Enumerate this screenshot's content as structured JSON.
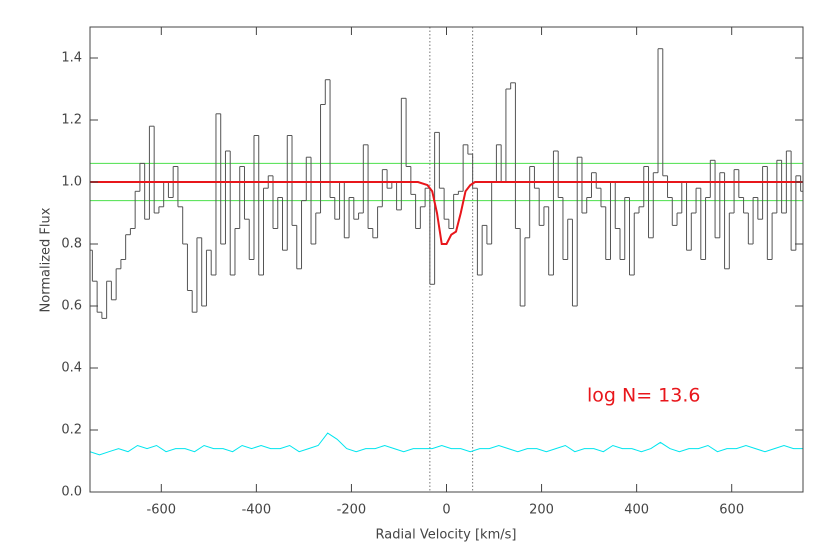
{
  "chart_data": {
    "type": "line",
    "xlabel": "Radial Velocity [km/s]",
    "ylabel": "Normalized Flux",
    "xlim": [
      -750,
      750
    ],
    "ylim": [
      0,
      1.5
    ],
    "xticks": [
      -600,
      -400,
      -200,
      0,
      200,
      400,
      600
    ],
    "yticks": [
      {
        "value": 0,
        "label": "0.0"
      },
      0.2,
      0.4,
      0.6,
      0.8,
      {
        "value": 1,
        "label": "1.0"
      },
      1.2,
      1.4
    ],
    "annotation": {
      "text": "log N= 13.6",
      "color": "#e8161b"
    },
    "hlines": {
      "values": [
        1.06,
        0.94
      ],
      "color": "#4ce04c"
    },
    "vlines": {
      "values": [
        -35,
        55
      ],
      "color": "#777777"
    },
    "series": [
      {
        "style": "step",
        "color": "#555555",
        "x": [
          -750,
          -740,
          -730,
          -720,
          -710,
          -700,
          -690,
          -680,
          -670,
          -660,
          -650,
          -640,
          -630,
          -620,
          -610,
          -600,
          -590,
          -580,
          -570,
          -560,
          -550,
          -540,
          -530,
          -520,
          -510,
          -500,
          -490,
          -480,
          -470,
          -460,
          -450,
          -440,
          -430,
          -420,
          -410,
          -400,
          -390,
          -380,
          -370,
          -360,
          -350,
          -340,
          -330,
          -320,
          -310,
          -300,
          -290,
          -280,
          -270,
          -260,
          -250,
          -240,
          -230,
          -220,
          -210,
          -200,
          -190,
          -180,
          -170,
          -160,
          -150,
          -140,
          -130,
          -120,
          -110,
          -100,
          -90,
          -80,
          -70,
          -60,
          -50,
          -40,
          -30,
          -20,
          -10,
          0,
          10,
          20,
          30,
          40,
          50,
          60,
          70,
          80,
          90,
          100,
          110,
          120,
          130,
          140,
          150,
          160,
          170,
          180,
          190,
          200,
          210,
          220,
          230,
          240,
          250,
          260,
          270,
          280,
          290,
          300,
          310,
          320,
          330,
          340,
          350,
          360,
          370,
          380,
          390,
          400,
          410,
          420,
          430,
          440,
          450,
          460,
          470,
          480,
          490,
          500,
          510,
          520,
          530,
          540,
          550,
          560,
          570,
          580,
          590,
          600,
          610,
          620,
          630,
          640,
          650,
          660,
          670,
          680,
          690,
          700,
          710,
          720,
          730,
          740,
          750
        ],
        "values": [
          0.78,
          0.68,
          0.58,
          0.56,
          0.68,
          0.62,
          0.72,
          0.75,
          0.83,
          0.85,
          0.97,
          1.06,
          0.88,
          1.18,
          0.9,
          0.92,
          1.0,
          0.95,
          1.05,
          0.92,
          0.8,
          0.65,
          0.58,
          0.82,
          0.6,
          0.78,
          0.7,
          1.22,
          0.8,
          1.1,
          0.7,
          0.85,
          1.05,
          0.88,
          0.75,
          1.15,
          0.7,
          0.98,
          1.02,
          0.85,
          0.95,
          0.78,
          1.15,
          0.86,
          0.72,
          0.94,
          1.08,
          0.8,
          0.9,
          1.25,
          1.33,
          0.95,
          0.88,
          1.0,
          0.82,
          0.95,
          0.88,
          0.9,
          1.12,
          0.85,
          0.82,
          0.92,
          1.04,
          0.98,
          1.0,
          0.91,
          1.27,
          1.05,
          0.96,
          0.85,
          0.92,
          0.98,
          0.67,
          1.16,
          0.98,
          0.88,
          0.85,
          0.96,
          0.97,
          1.12,
          1.09,
          0.98,
          0.7,
          0.86,
          0.8,
          1.0,
          1.12,
          1.0,
          1.3,
          1.32,
          0.85,
          0.6,
          0.82,
          1.05,
          0.98,
          0.86,
          0.92,
          0.7,
          1.1,
          0.95,
          0.75,
          0.88,
          0.6,
          1.08,
          0.9,
          0.95,
          1.03,
          0.98,
          0.92,
          0.75,
          1.0,
          0.85,
          0.75,
          0.95,
          0.7,
          0.9,
          0.92,
          1.05,
          0.82,
          1.03,
          1.43,
          1.02,
          0.95,
          0.86,
          0.9,
          1.0,
          0.78,
          0.9,
          0.98,
          0.75,
          0.95,
          1.07,
          0.82,
          1.03,
          0.72,
          0.9,
          1.04,
          0.95,
          0.9,
          0.8,
          0.95,
          0.88,
          1.05,
          0.75,
          0.9,
          1.07,
          0.9,
          1.1,
          0.78,
          1.02,
          0.97
        ]
      },
      {
        "style": "line",
        "color": "#00e5ee",
        "x": [
          -750,
          -730,
          -710,
          -690,
          -670,
          -650,
          -630,
          -610,
          -590,
          -570,
          -550,
          -530,
          -510,
          -490,
          -470,
          -450,
          -430,
          -410,
          -390,
          -370,
          -350,
          -330,
          -310,
          -290,
          -270,
          -250,
          -230,
          -210,
          -190,
          -170,
          -150,
          -130,
          -110,
          -90,
          -70,
          -50,
          -30,
          -10,
          10,
          30,
          50,
          70,
          90,
          110,
          130,
          150,
          170,
          190,
          210,
          230,
          250,
          270,
          290,
          310,
          330,
          350,
          370,
          390,
          410,
          430,
          450,
          470,
          490,
          510,
          530,
          550,
          570,
          590,
          610,
          630,
          650,
          670,
          690,
          710,
          730,
          750
        ],
        "values": [
          0.13,
          0.12,
          0.13,
          0.14,
          0.13,
          0.15,
          0.14,
          0.15,
          0.13,
          0.14,
          0.14,
          0.13,
          0.15,
          0.14,
          0.14,
          0.13,
          0.15,
          0.14,
          0.15,
          0.14,
          0.14,
          0.15,
          0.13,
          0.14,
          0.15,
          0.19,
          0.17,
          0.14,
          0.13,
          0.14,
          0.14,
          0.15,
          0.14,
          0.13,
          0.14,
          0.14,
          0.14,
          0.15,
          0.14,
          0.14,
          0.13,
          0.14,
          0.14,
          0.15,
          0.14,
          0.13,
          0.14,
          0.14,
          0.13,
          0.14,
          0.15,
          0.13,
          0.14,
          0.14,
          0.13,
          0.15,
          0.14,
          0.14,
          0.13,
          0.14,
          0.16,
          0.14,
          0.13,
          0.14,
          0.14,
          0.15,
          0.13,
          0.14,
          0.14,
          0.15,
          0.14,
          0.13,
          0.14,
          0.15,
          0.14,
          0.14
        ]
      },
      {
        "style": "line",
        "color": "#e8161b",
        "width": 2,
        "x": [
          -750,
          -100,
          -60,
          -40,
          -30,
          -20,
          -10,
          0,
          10,
          20,
          30,
          40,
          50,
          60,
          100,
          750
        ],
        "values": [
          1,
          1,
          1,
          0.99,
          0.97,
          0.9,
          0.8,
          0.8,
          0.83,
          0.84,
          0.9,
          0.97,
          0.99,
          1,
          1,
          1
        ]
      }
    ]
  }
}
